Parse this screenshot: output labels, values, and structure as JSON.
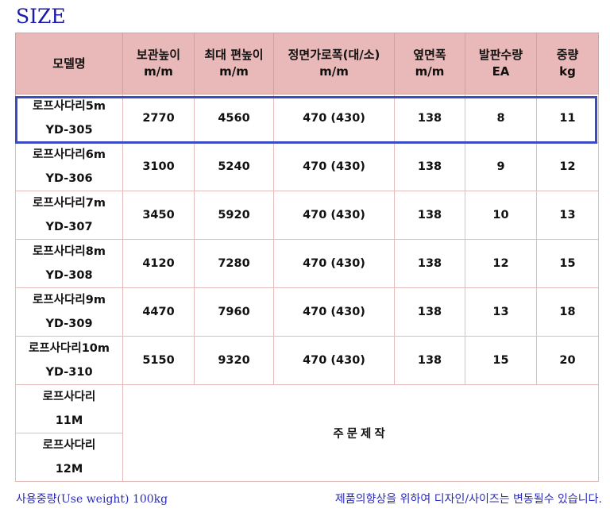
{
  "title": "SIZE",
  "headers": [
    {
      "line1": "모델명",
      "line2": ""
    },
    {
      "line1": "보관높이",
      "line2": "m/m"
    },
    {
      "line1": "최대 편높이",
      "line2": "m/m"
    },
    {
      "line1": "정면가로폭(대/소)",
      "line2": "m/m"
    },
    {
      "line1": "옆면폭",
      "line2": "m/m"
    },
    {
      "line1": "발판수량",
      "line2": "EA"
    },
    {
      "line1": "중량",
      "line2": "kg"
    }
  ],
  "rows": [
    {
      "name": "로프사다리5m",
      "code": "YD-305",
      "storage": "2770",
      "max_height": "4560",
      "front_width": "470 (430)",
      "side_width": "138",
      "steps": "8",
      "weight": "11"
    },
    {
      "name": "로프사다리6m",
      "code": "YD-306",
      "storage": "3100",
      "max_height": "5240",
      "front_width": "470 (430)",
      "side_width": "138",
      "steps": "9",
      "weight": "12"
    },
    {
      "name": "로프사다리7m",
      "code": "YD-307",
      "storage": "3450",
      "max_height": "5920",
      "front_width": "470 (430)",
      "side_width": "138",
      "steps": "10",
      "weight": "13"
    },
    {
      "name": "로프사다리8m",
      "code": "YD-308",
      "storage": "4120",
      "max_height": "7280",
      "front_width": "470 (430)",
      "side_width": "138",
      "steps": "12",
      "weight": "15"
    },
    {
      "name": "로프사다리9m",
      "code": "YD-309",
      "storage": "4470",
      "max_height": "7960",
      "front_width": "470 (430)",
      "side_width": "138",
      "steps": "13",
      "weight": "18"
    },
    {
      "name": "로프사다리10m",
      "code": "YD-310",
      "storage": "5150",
      "max_height": "9320",
      "front_width": "470 (430)",
      "side_width": "138",
      "steps": "15",
      "weight": "20"
    }
  ],
  "custom_rows": [
    {
      "name": "로프사다리",
      "size": "11M"
    },
    {
      "name": "로프사다리",
      "size": "12M"
    }
  ],
  "custom_text": "주문제작",
  "footer_left": "사용중량(Use weight) 100kg",
  "footer_right": "제품의향상을 위하여 디자인/사이즈는 변동될수 있습니다.",
  "highlight_color": "#3a4bc4",
  "header_bg": "#e9b8b8",
  "title_color": "#1a1aa8"
}
